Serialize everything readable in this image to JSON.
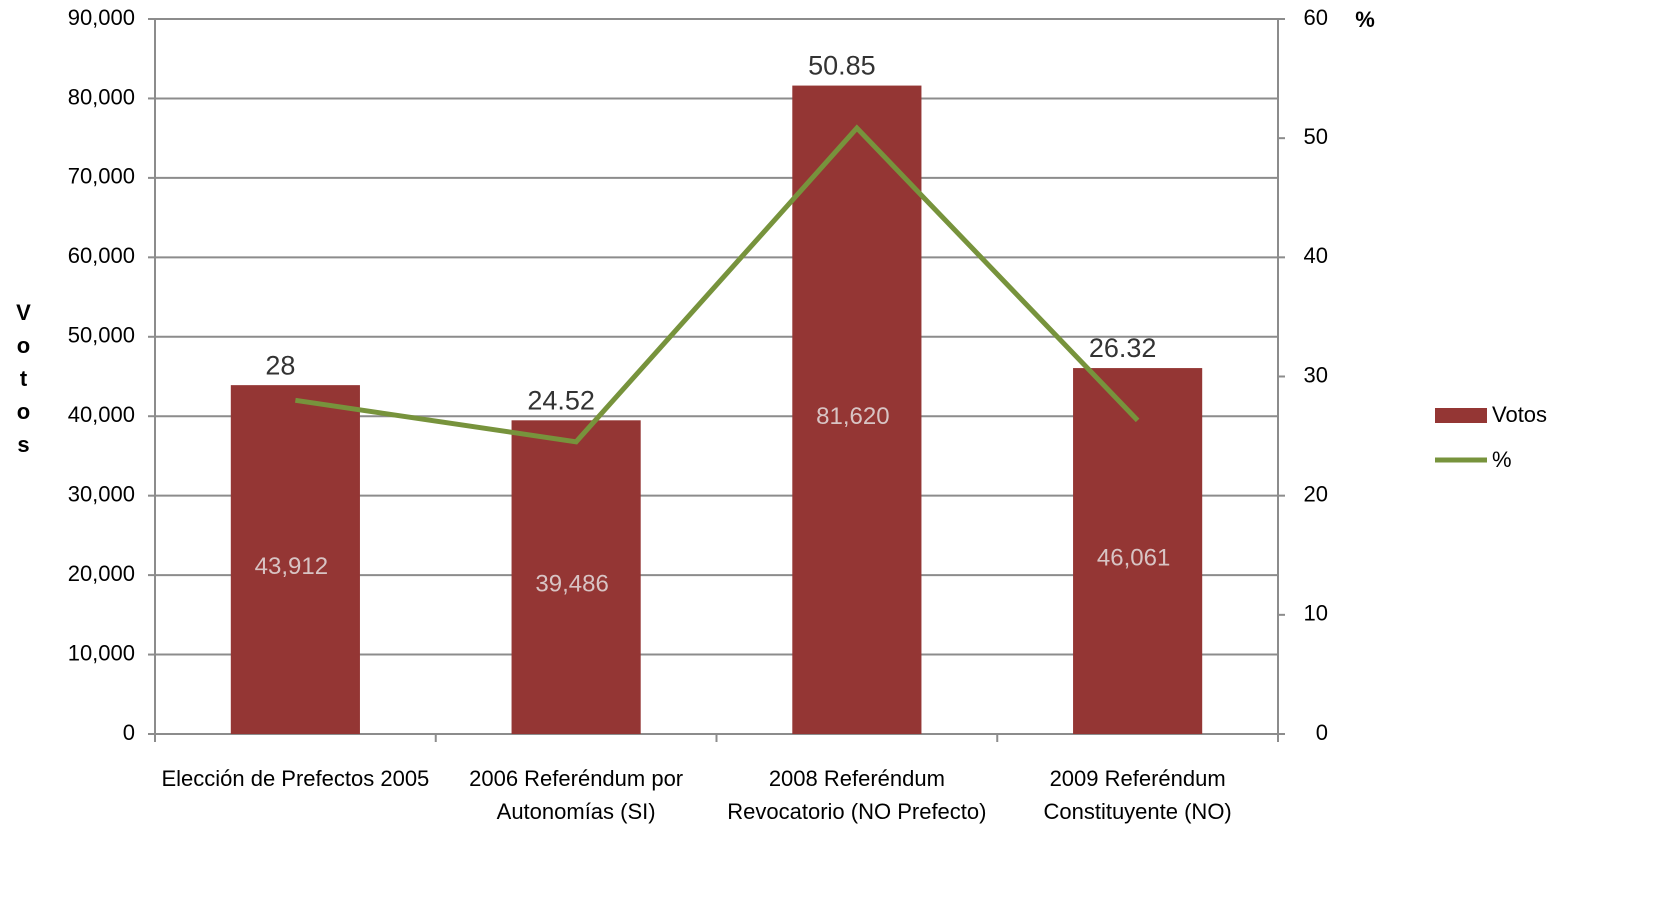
{
  "chart_data": {
    "type": "bar",
    "categories": [
      "Elección de Prefectos 2005",
      "2006 Referéndum por Autonomías (SI)",
      "2008 Referéndum Revocatorio (NO Prefecto)",
      "2009 Referéndum Constituyente (NO)"
    ],
    "ylabel": "Votos",
    "y2label": "%",
    "series": [
      {
        "name": "Votos",
        "type": "bar",
        "color": "#943634",
        "values": [
          43912,
          39486,
          81620,
          46061
        ],
        "value_labels": [
          "43,912",
          "39,486",
          "81,620",
          "46,061"
        ]
      },
      {
        "name": "%",
        "type": "line",
        "axis": "y2",
        "color": "#77933c",
        "values": [
          28,
          24.52,
          50.85,
          26.32
        ]
      }
    ],
    "ylim": [
      0,
      90000
    ],
    "yticks": [
      0,
      {
        "value": 10000,
        "label": "10,000"
      },
      {
        "value": 20000,
        "label": "20,000"
      },
      {
        "value": 30000,
        "label": "30,000"
      },
      {
        "value": 40000,
        "label": "40,000"
      },
      {
        "value": 50000,
        "label": "50,000"
      },
      {
        "value": 60000,
        "label": "60,000"
      },
      {
        "value": 70000,
        "label": "70,000"
      },
      {
        "value": 80000,
        "label": "80,000"
      },
      {
        "value": 90000,
        "label": "90,000"
      }
    ],
    "y2lim": [
      0,
      60
    ],
    "y2ticks": [
      0,
      10,
      20,
      30,
      40,
      50,
      60
    ],
    "grid": true,
    "legend": "right"
  }
}
